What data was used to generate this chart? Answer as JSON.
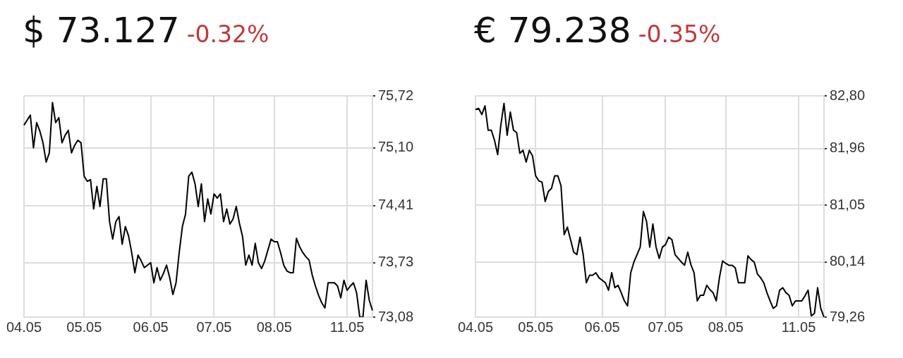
{
  "chart_data": [
    {
      "type": "line",
      "title": "$ 73.127",
      "subtitle": "-0.32%",
      "color": "#000000",
      "grid": true,
      "categories": [
        "04.05",
        null,
        null,
        null,
        null,
        null,
        null,
        null,
        null,
        null,
        null,
        null,
        null,
        null,
        null,
        null,
        null,
        null,
        null,
        "05.05",
        null,
        null,
        null,
        null,
        null,
        null,
        null,
        null,
        null,
        null,
        null,
        null,
        null,
        null,
        null,
        null,
        null,
        null,
        null,
        null,
        "06.05",
        null,
        null,
        null,
        null,
        null,
        null,
        null,
        null,
        null,
        null,
        null,
        null,
        null,
        null,
        null,
        null,
        null,
        null,
        null,
        "07.05",
        null,
        null,
        null,
        null,
        null,
        null,
        null,
        null,
        null,
        null,
        null,
        null,
        null,
        null,
        null,
        null,
        null,
        null,
        "08.05",
        null,
        null,
        null,
        null,
        null,
        null,
        null,
        null,
        null,
        null,
        null,
        null,
        null,
        null,
        null,
        null,
        null,
        null,
        null,
        null,
        null,
        null,
        "11.05",
        null,
        null,
        null,
        null,
        null,
        null,
        null,
        null
      ],
      "ylim": [
        73.08,
        75.72
      ],
      "yticks": [
        {
          "value": 73.08,
          "label": "73,08"
        },
        {
          "value": 73.73,
          "label": "73,73"
        },
        {
          "value": 74.41,
          "label": "74,41"
        },
        {
          "value": 75.1,
          "label": "75,10"
        },
        {
          "value": 75.72,
          "label": "75,72"
        }
      ],
      "values": [
        75.37,
        75.43,
        75.49,
        75.1,
        75.4,
        75.3,
        75.16,
        74.93,
        75.04,
        75.64,
        75.4,
        75.46,
        75.16,
        75.25,
        75.31,
        75.04,
        75.13,
        75.19,
        75.16,
        74.76,
        74.7,
        74.72,
        74.37,
        74.64,
        74.4,
        74.73,
        74.73,
        74.22,
        74.01,
        74.22,
        74.28,
        73.95,
        74.16,
        74.05,
        73.85,
        73.61,
        73.82,
        73.75,
        73.67,
        73.7,
        73.73,
        73.49,
        73.67,
        73.52,
        73.6,
        73.7,
        73.55,
        73.35,
        73.49,
        73.85,
        74.16,
        74.31,
        74.76,
        74.81,
        74.67,
        74.4,
        74.67,
        74.22,
        74.49,
        74.31,
        74.55,
        74.5,
        74.55,
        74.22,
        74.37,
        74.19,
        74.25,
        74.4,
        74.2,
        74.04,
        73.7,
        73.82,
        73.7,
        73.96,
        73.73,
        73.66,
        73.75,
        73.88,
        74.01,
        73.98,
        73.98,
        73.85,
        73.7,
        73.63,
        73.61,
        73.61,
        74.02,
        73.92,
        73.85,
        73.8,
        73.76,
        73.58,
        73.45,
        73.34,
        73.25,
        73.19,
        73.49,
        73.49,
        73.49,
        73.45,
        73.31,
        73.52,
        73.4,
        73.45,
        73.49,
        73.37,
        73.08,
        73.08,
        73.52,
        73.28,
        73.16
      ]
    },
    {
      "type": "line",
      "title": "€ 79.238",
      "subtitle": "-0.35%",
      "color": "#000000",
      "grid": true,
      "categories": [
        "04.05",
        null,
        null,
        null,
        null,
        null,
        null,
        null,
        null,
        null,
        null,
        null,
        null,
        null,
        null,
        null,
        null,
        null,
        null,
        "05.05",
        null,
        null,
        null,
        null,
        null,
        null,
        null,
        null,
        null,
        null,
        null,
        null,
        null,
        null,
        null,
        null,
        null,
        null,
        null,
        null,
        "06.05",
        null,
        null,
        null,
        null,
        null,
        null,
        null,
        null,
        null,
        null,
        null,
        null,
        null,
        null,
        null,
        null,
        null,
        null,
        null,
        "07.05",
        null,
        null,
        null,
        null,
        null,
        null,
        null,
        null,
        null,
        null,
        null,
        null,
        null,
        null,
        null,
        null,
        null,
        null,
        "08.05",
        null,
        null,
        null,
        null,
        null,
        null,
        null,
        null,
        null,
        null,
        null,
        null,
        null,
        null,
        null,
        null,
        null,
        null,
        null,
        null,
        null,
        null,
        "11.05",
        null,
        null,
        null,
        null,
        null,
        null,
        null,
        null
      ],
      "ylim": [
        79.26,
        82.8
      ],
      "yticks": [
        {
          "value": 79.26,
          "label": "79,26"
        },
        {
          "value": 80.14,
          "label": "80,14"
        },
        {
          "value": 81.05,
          "label": "81,05"
        },
        {
          "value": 81.96,
          "label": "81,96"
        },
        {
          "value": 82.8,
          "label": "82,80"
        }
      ],
      "values": [
        82.58,
        82.6,
        82.5,
        82.64,
        82.25,
        82.25,
        82.09,
        81.86,
        82.33,
        82.68,
        82.17,
        82.54,
        82.25,
        82.21,
        81.88,
        81.93,
        81.74,
        81.93,
        81.84,
        81.52,
        81.44,
        81.42,
        81.11,
        81.27,
        81.32,
        81.52,
        81.52,
        81.36,
        80.58,
        80.7,
        80.5,
        80.3,
        80.26,
        80.54,
        80.26,
        79.81,
        79.93,
        79.93,
        79.97,
        79.89,
        79.85,
        79.81,
        79.69,
        79.97,
        79.73,
        79.77,
        79.65,
        79.52,
        79.44,
        79.97,
        80.14,
        80.26,
        80.38,
        80.95,
        80.79,
        80.38,
        80.75,
        80.38,
        80.2,
        80.38,
        80.42,
        80.54,
        80.5,
        80.26,
        80.2,
        80.14,
        80.09,
        80.3,
        80.1,
        79.97,
        79.52,
        79.61,
        79.61,
        79.77,
        79.7,
        79.65,
        79.52,
        79.89,
        80.16,
        80.12,
        80.09,
        80.09,
        80.05,
        79.81,
        79.81,
        79.81,
        80.24,
        80.18,
        80.14,
        79.95,
        79.89,
        79.81,
        79.65,
        79.52,
        79.4,
        79.44,
        79.69,
        79.73,
        79.65,
        79.61,
        79.44,
        79.52,
        79.52,
        79.52,
        79.6,
        79.69,
        79.28,
        79.32,
        79.73,
        79.4,
        79.26
      ]
    }
  ]
}
